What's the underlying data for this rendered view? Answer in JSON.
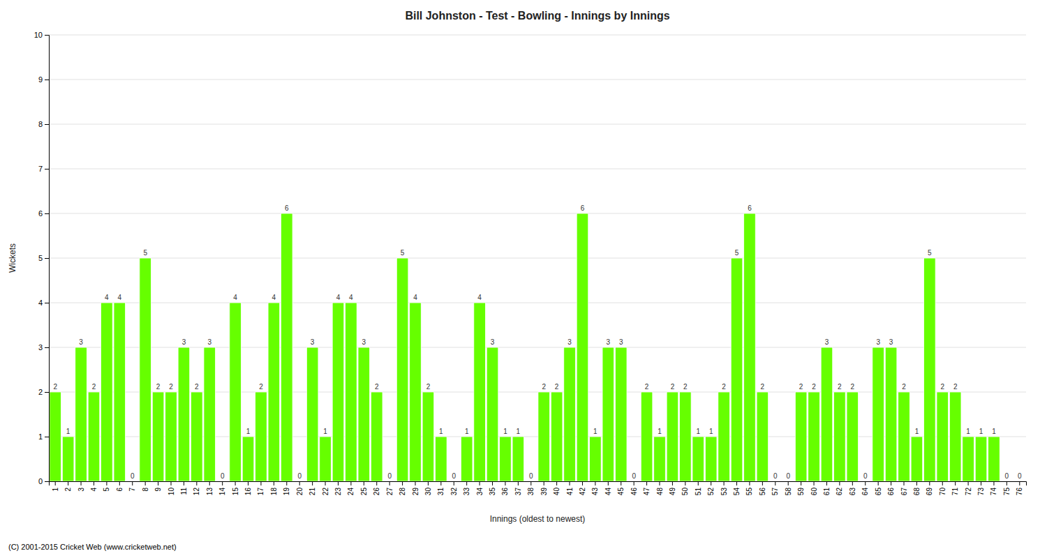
{
  "chart_data": {
    "type": "bar",
    "title": "Bill Johnston  -  Test  -  Bowling  -  Innings by Innings",
    "x_label": "Innings (oldest to newest)",
    "y_label": "Wickets",
    "footer": "(C) 2001-2015 Cricket Web (www.cricketweb.net)",
    "categories": [
      "1",
      "2",
      "3",
      "4",
      "5",
      "6",
      "7",
      "8",
      "9",
      "10",
      "11",
      "12",
      "13",
      "14",
      "15",
      "16",
      "17",
      "18",
      "19",
      "20",
      "21",
      "22",
      "23",
      "24",
      "25",
      "26",
      "27",
      "28",
      "29",
      "30",
      "31",
      "32",
      "33",
      "34",
      "35",
      "36",
      "37",
      "38",
      "39",
      "40",
      "41",
      "42",
      "43",
      "44",
      "45",
      "46",
      "47",
      "48",
      "49",
      "50",
      "51",
      "52",
      "53",
      "54",
      "55",
      "56",
      "57",
      "58",
      "59",
      "60",
      "61",
      "62",
      "63",
      "64",
      "65",
      "66",
      "67",
      "68",
      "69",
      "70",
      "71",
      "72",
      "73",
      "74",
      "75",
      "76"
    ],
    "values": [
      2,
      1,
      3,
      2,
      4,
      4,
      0,
      5,
      2,
      2,
      3,
      2,
      3,
      0,
      4,
      1,
      2,
      4,
      6,
      0,
      3,
      1,
      4,
      4,
      3,
      2,
      0,
      5,
      4,
      2,
      1,
      0,
      1,
      4,
      3,
      1,
      1,
      0,
      2,
      2,
      3,
      6,
      1,
      3,
      3,
      0,
      2,
      1,
      2,
      2,
      1,
      1,
      2,
      5,
      6,
      2,
      0,
      0,
      2,
      2,
      3,
      2,
      2,
      0,
      3,
      3,
      2,
      1,
      5,
      2,
      2,
      1,
      1,
      1,
      0,
      0
    ],
    "color": "#66ff00",
    "ylim": [
      0,
      10
    ],
    "yticks": [
      0,
      1,
      2,
      3,
      4,
      5,
      6,
      7,
      8,
      9,
      10
    ],
    "grid": true,
    "data_labels": true
  }
}
